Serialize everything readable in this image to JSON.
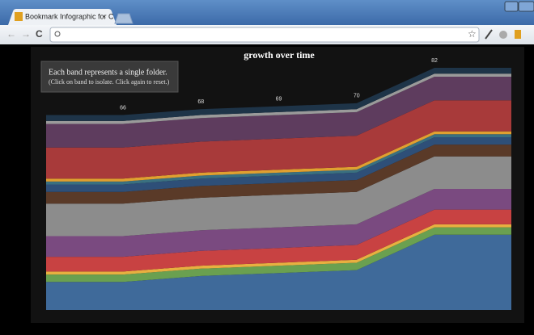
{
  "browser": {
    "tab_title": "Bookmark Infographic for C"
  },
  "chart_data": {
    "type": "stacked-area",
    "title": "growth over time",
    "note": "Each band represents a single folder.",
    "hint": "(Click on band to isolate. Click again to reset.)",
    "totals": [
      66,
      68,
      69,
      70,
      82
    ],
    "series": [
      {
        "color": "#3f6a9a",
        "values": [
          9.5,
          11.5,
          12.5,
          13.5,
          25.5
        ]
      },
      {
        "color": "#6aa050",
        "values": [
          2.5,
          2.5,
          2.5,
          2.5,
          2.5
        ]
      },
      {
        "color": "#e8b040",
        "values": [
          1,
          1,
          1,
          1,
          1
        ]
      },
      {
        "color": "#c84242",
        "values": [
          5,
          5,
          5,
          5,
          5
        ]
      },
      {
        "color": "#7a4a80",
        "values": [
          7,
          7,
          7,
          7,
          7
        ]
      },
      {
        "color": "#8c8c8c",
        "values": [
          11,
          11,
          11,
          11,
          11
        ]
      },
      {
        "color": "#5a3a28",
        "values": [
          4,
          4,
          4,
          4,
          4
        ]
      },
      {
        "color": "#2e4f78",
        "values": [
          2.5,
          2.5,
          2.5,
          2.5,
          2.5
        ]
      },
      {
        "color": "#3a7080",
        "values": [
          1,
          1,
          1,
          1,
          1
        ]
      },
      {
        "color": "#e0a030",
        "values": [
          1,
          1,
          1,
          1,
          1
        ]
      },
      {
        "color": "#a83a3a",
        "values": [
          10.5,
          10.5,
          10.5,
          10.5,
          10.5
        ]
      },
      {
        "color": "#5e3c5e",
        "values": [
          8,
          8,
          8,
          8,
          8
        ]
      },
      {
        "color": "#9a9a9a",
        "values": [
          1,
          1,
          1,
          1,
          1
        ]
      },
      {
        "color": "#1e3448",
        "values": [
          2,
          2,
          2,
          2,
          2
        ]
      }
    ]
  }
}
